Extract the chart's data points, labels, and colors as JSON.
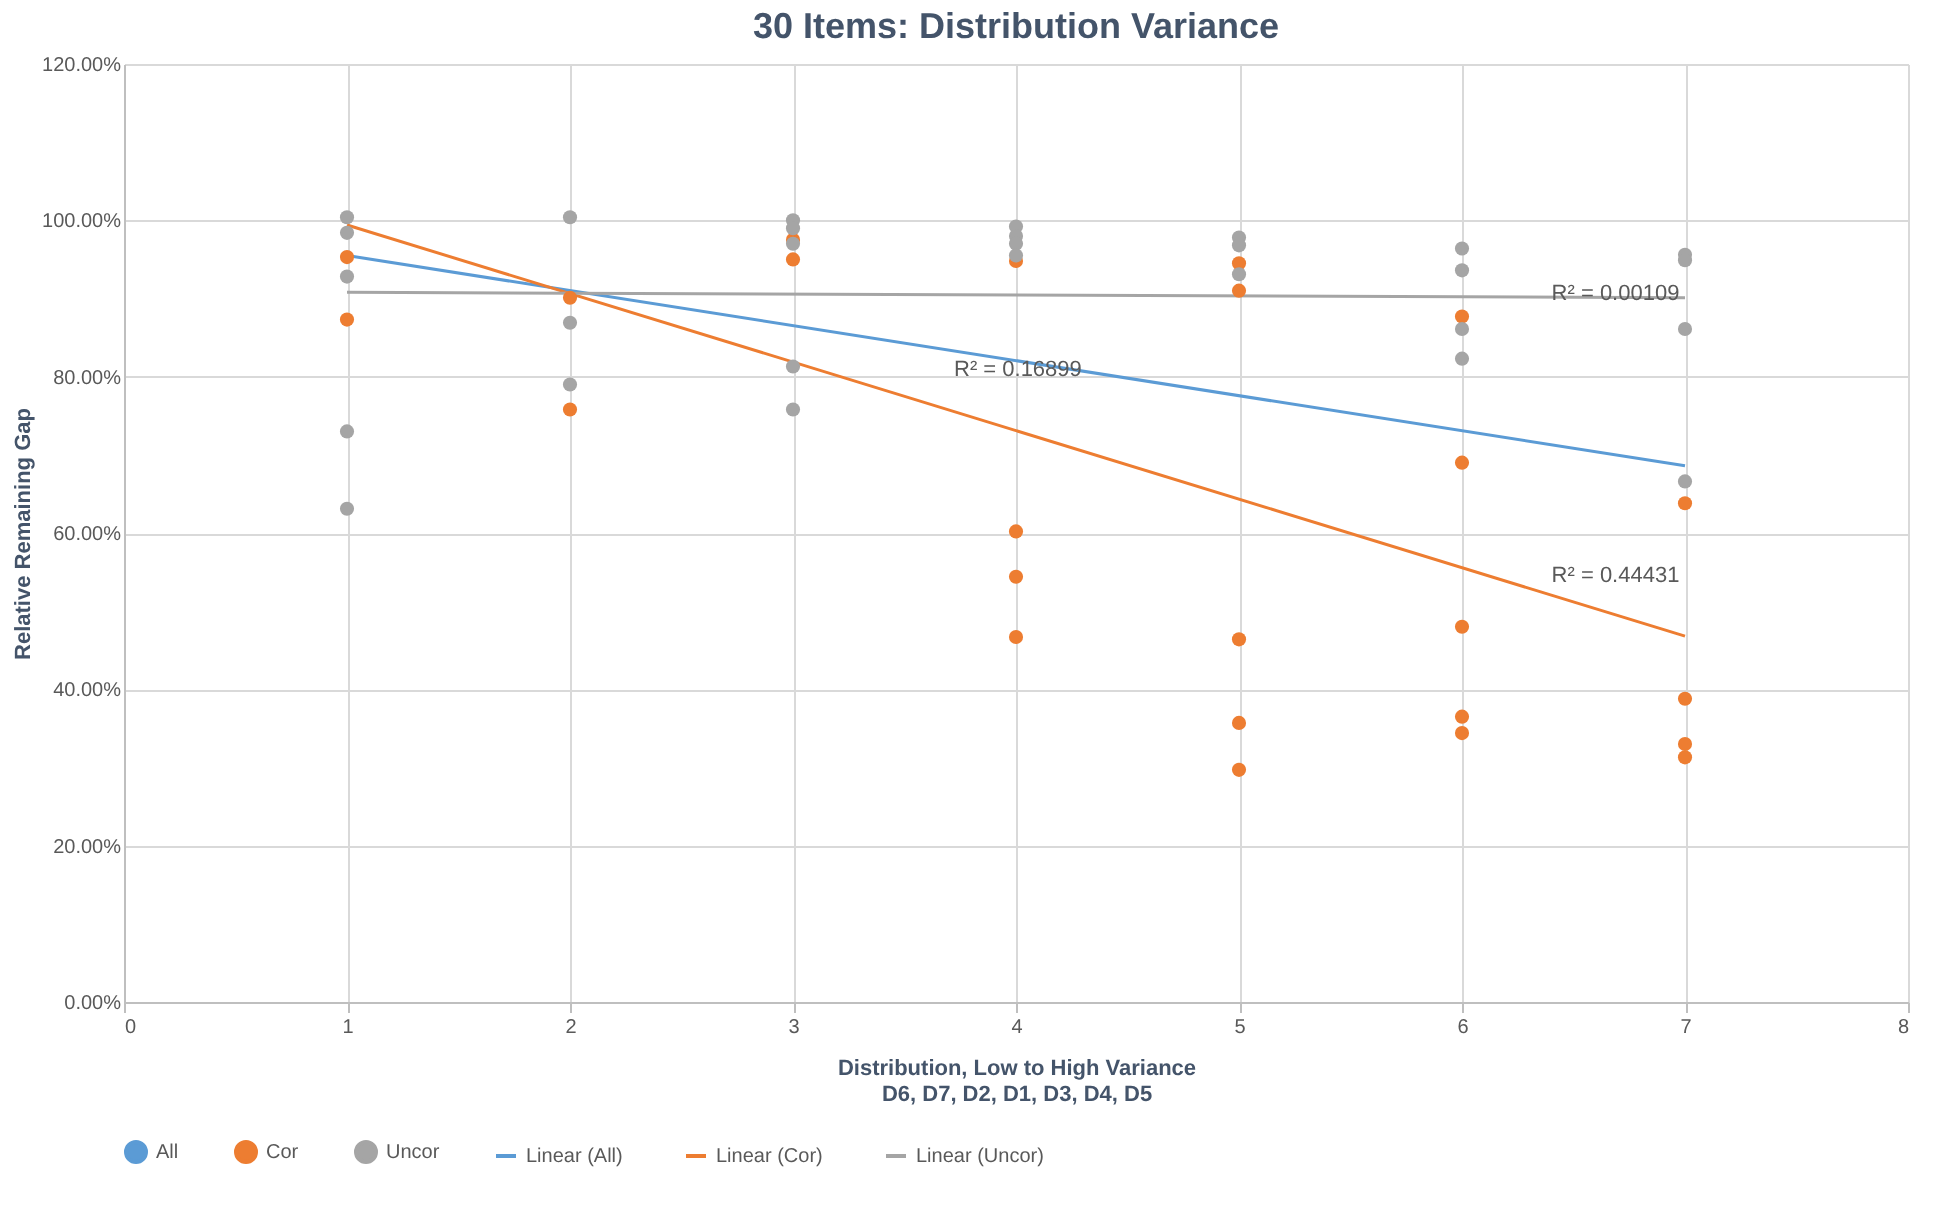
{
  "chart_data": {
    "type": "scatter",
    "title": "30 Items: Distribution Variance",
    "xlabel": "Distribution, Low to High Variance\nD6, D7, D2, D1, D3, D4, D5",
    "ylabel": "Relative Remaining Gap",
    "xlim": [
      0,
      8
    ],
    "xticks": [
      0,
      1,
      2,
      3,
      4,
      5,
      6,
      7,
      8
    ],
    "ylim": [
      0,
      120
    ],
    "yticks": [
      {
        "value": 0,
        "label": "0.00%"
      },
      {
        "value": 20,
        "label": "20.00%"
      },
      {
        "value": 40,
        "label": "40.00%"
      },
      {
        "value": 60,
        "label": "60.00%"
      },
      {
        "value": 80,
        "label": "80.00%"
      },
      {
        "value": 100,
        "label": "100.00%"
      },
      {
        "value": 120,
        "label": "120.00%"
      }
    ],
    "grid": true,
    "legend": "bottom",
    "series": [
      {
        "name": "All",
        "color": "#5b9bd5",
        "marker": "circle"
      },
      {
        "name": "Cor",
        "color": "#ed7d31",
        "marker": "circle",
        "x": [
          1,
          1,
          2,
          2,
          3,
          3,
          4,
          4,
          4,
          4,
          5,
          5,
          5,
          5,
          5,
          6,
          6,
          6,
          6,
          6,
          7,
          7,
          7,
          7
        ],
        "values": [
          95.3,
          87.3,
          90.1,
          75.8,
          97.5,
          95.0,
          94.8,
          60.2,
          54.4,
          46.7,
          94.5,
          91.0,
          46.4,
          35.7,
          29.7,
          87.7,
          69.0,
          48.0,
          36.5,
          34.4,
          63.8,
          38.8,
          33.0,
          31.3
        ]
      },
      {
        "name": "Uncor",
        "color": "#a5a5a5",
        "marker": "circle",
        "x": [
          1,
          1,
          1,
          1,
          1,
          2,
          2,
          2,
          3,
          3,
          3,
          3,
          3,
          4,
          4,
          4,
          4,
          5,
          5,
          5,
          6,
          6,
          6,
          6,
          7,
          7,
          7,
          7
        ],
        "values": [
          100.4,
          98.4,
          92.8,
          73.0,
          63.1,
          100.4,
          86.9,
          79.0,
          100.0,
          99.0,
          97.0,
          81.3,
          75.8,
          99.2,
          98.0,
          97.0,
          95.5,
          97.8,
          96.8,
          93.1,
          96.4,
          93.6,
          86.1,
          82.3,
          95.6,
          94.9,
          86.1,
          66.6
        ]
      },
      {
        "name": "Linear  (All)",
        "type": "line",
        "color": "#5b9bd5",
        "x": [
          1,
          7
        ],
        "values": [
          95.5,
          68.6
        ]
      },
      {
        "name": "Linear  (Cor)",
        "type": "line",
        "color": "#ed7d31",
        "x": [
          1,
          7
        ],
        "values": [
          99.4,
          46.8
        ]
      },
      {
        "name": "Linear  (Uncor)",
        "type": "line",
        "color": "#a5a5a5",
        "x": [
          1,
          7
        ],
        "values": [
          90.8,
          90.1
        ]
      }
    ],
    "annotations": [
      "R² = 0.16899",
      "R² = 0.00109",
      "R² = 0.44431"
    ]
  }
}
